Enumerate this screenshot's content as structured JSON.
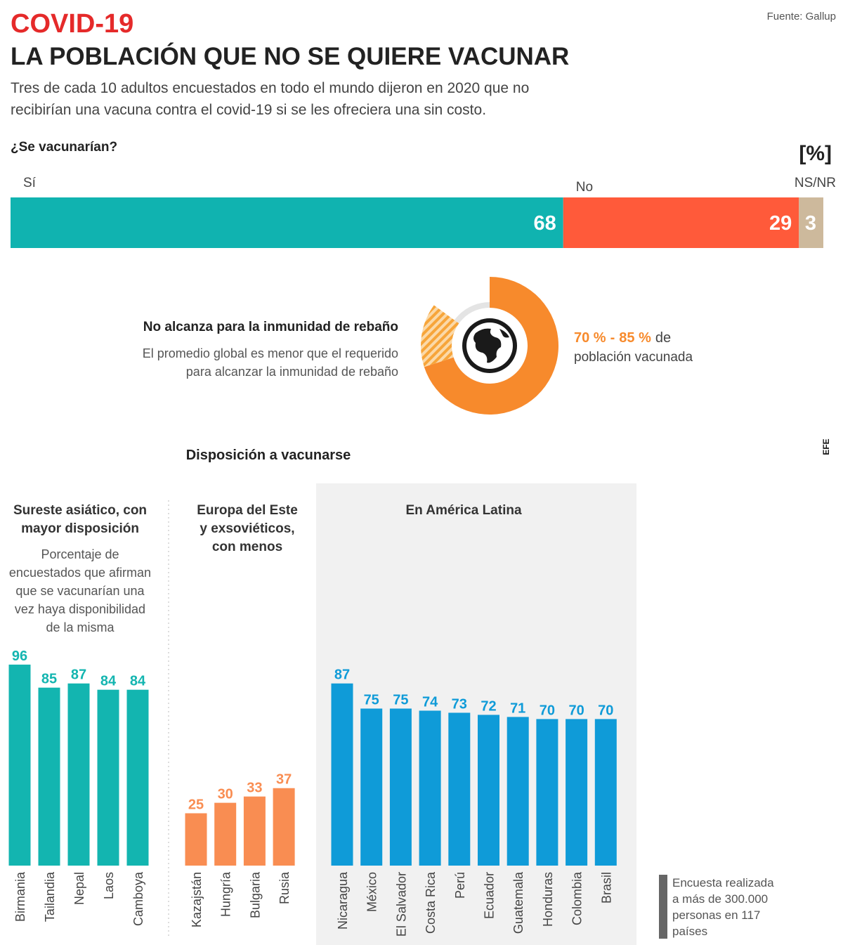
{
  "header": {
    "kicker": "COVID-19",
    "title": "LA POBLACIÓN QUE NO SE QUIERE VACUNAR",
    "subtitle": [
      "Tres de cada 10 adultos encuestados en todo el mundo dijeron en 2020 que no",
      "recibirían una vacuna contra el covid-19 si se les ofreciera una sin costo."
    ],
    "source": "Fuente: Gallup",
    "credit": "EFE",
    "section_title": "Disposición a vacunarse",
    "footnote": [
      "Encuesta realizada",
      "a más de 300.000",
      "personas en 117",
      "países"
    ]
  },
  "chart_data": [
    {
      "type": "stacked-bar",
      "title": "¿Se vacunarían?",
      "unit": "[%]",
      "xlim": [
        0,
        100
      ],
      "series": [
        {
          "name": "Sí",
          "color": "#10b3b0",
          "values": [
            68
          ]
        },
        {
          "name": "No",
          "color": "#ff5a3a",
          "values": [
            29
          ]
        },
        {
          "name": "NS/NR",
          "color": "#cdb99c",
          "values": [
            3
          ]
        }
      ]
    },
    {
      "type": "donut",
      "title": "No alcanza para la inmunidad de rebaño",
      "description": [
        "El promedio global es menor que el requerido",
        "para alcanzar la inmunidad de rebaño"
      ],
      "values": [
        70,
        85
      ],
      "value_labels": [
        "70 %",
        "85 %"
      ],
      "label_separator": "-",
      "label_tail": "de",
      "label_line2": "población vacunada",
      "color": "#f78a2c",
      "xlim": [
        0,
        100
      ]
    },
    {
      "type": "bar",
      "title": [
        "Sureste asiático, con",
        "mayor disposición"
      ],
      "description": [
        "Porcentaje de",
        "encuestados que afirman",
        "que se vacunarían una",
        "vez haya disponibilidad",
        "de la misma"
      ],
      "categories": [
        "Birmania",
        "Tailandia",
        "Nepal",
        "Laos",
        "Camboya"
      ],
      "values": [
        96,
        85,
        87,
        84,
        84
      ],
      "color": "#13b5b0",
      "ylim": [
        0,
        100
      ]
    },
    {
      "type": "bar",
      "title": [
        "Europa del Este",
        "y exsoviéticos,",
        "con menos"
      ],
      "categories": [
        "Kazajstán",
        "Hungría",
        "Bulgaria",
        "Rusia"
      ],
      "values": [
        25,
        30,
        33,
        37
      ],
      "color": "#f98d52",
      "ylim": [
        0,
        100
      ]
    },
    {
      "type": "bar",
      "title": [
        "En América Latina"
      ],
      "categories": [
        "Nicaragua",
        "México",
        "El Salvador",
        "Costa Rica",
        "Perú",
        "Ecuador",
        "Guatemala",
        "Honduras",
        "Colombia",
        "Brasil"
      ],
      "values": [
        87,
        75,
        75,
        74,
        73,
        72,
        71,
        70,
        70,
        70
      ],
      "color": "#0f9bd8",
      "ylim": [
        0,
        100
      ]
    }
  ]
}
